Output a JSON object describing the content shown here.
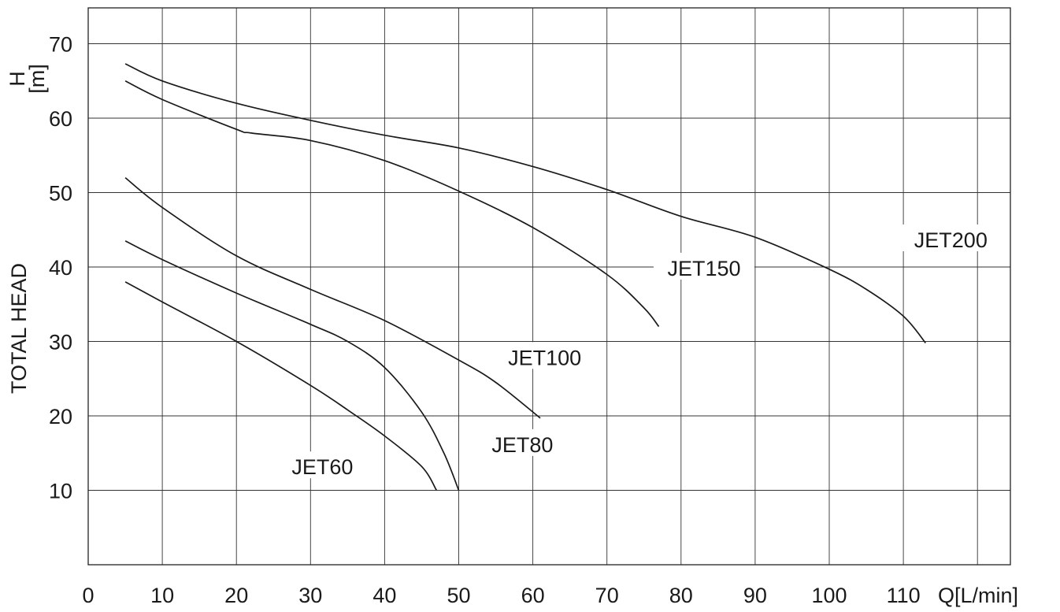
{
  "chart_data": {
    "type": "line",
    "title": "",
    "xlabel": "Q[L/min]",
    "ylabel": "TOTAL HEAD",
    "ylabel_unit": "H\n[m]",
    "xlim": [
      0,
      125
    ],
    "ylim": [
      0,
      75
    ],
    "xticks": [
      0,
      10,
      20,
      30,
      40,
      50,
      60,
      70,
      80,
      90,
      100,
      110
    ],
    "yticks": [
      10,
      20,
      30,
      40,
      50,
      60,
      70
    ],
    "grid": true,
    "legend": "none",
    "series": [
      {
        "name": "JET60",
        "x": [
          5,
          10,
          20,
          30,
          35,
          40,
          45,
          47
        ],
        "y": [
          38,
          35.3,
          30,
          24.1,
          20.8,
          17.3,
          13.2,
          10
        ]
      },
      {
        "name": "JET80",
        "x": [
          5,
          10,
          20,
          30,
          35,
          40,
          45,
          48,
          50
        ],
        "y": [
          43.5,
          41,
          36.5,
          32.3,
          30,
          26.5,
          20.5,
          15,
          10
        ]
      },
      {
        "name": "JET100",
        "x": [
          5,
          10,
          20,
          30,
          40,
          50,
          55,
          61
        ],
        "y": [
          52,
          48,
          41.5,
          37,
          32.8,
          27.5,
          24.5,
          19.7
        ]
      },
      {
        "name": "JET150",
        "x": [
          5,
          10,
          20,
          22,
          30,
          40,
          50,
          60,
          70,
          75,
          77
        ],
        "y": [
          65,
          62.5,
          58.5,
          58,
          57,
          54.3,
          50.2,
          45.3,
          39,
          34.5,
          32
        ]
      },
      {
        "name": "JET200",
        "x": [
          5,
          10,
          20,
          30,
          40,
          50,
          60,
          70,
          80,
          90,
          100,
          105,
          110,
          113
        ],
        "y": [
          67.3,
          65,
          62,
          59.7,
          57.7,
          56,
          53.5,
          50.4,
          46.8,
          44,
          39.7,
          37,
          33.4,
          29.8
        ]
      }
    ],
    "annotations": [
      {
        "text": "JET60",
        "x": 31.6,
        "y": 13.1
      },
      {
        "text": "JET80",
        "x": 58.6,
        "y": 16.1
      },
      {
        "text": "JET100",
        "x": 61.6,
        "y": 27.8
      },
      {
        "text": "JET150",
        "x": 83.1,
        "y": 39.8
      },
      {
        "text": "JET200",
        "x": 116.4,
        "y": 43.6
      }
    ]
  }
}
